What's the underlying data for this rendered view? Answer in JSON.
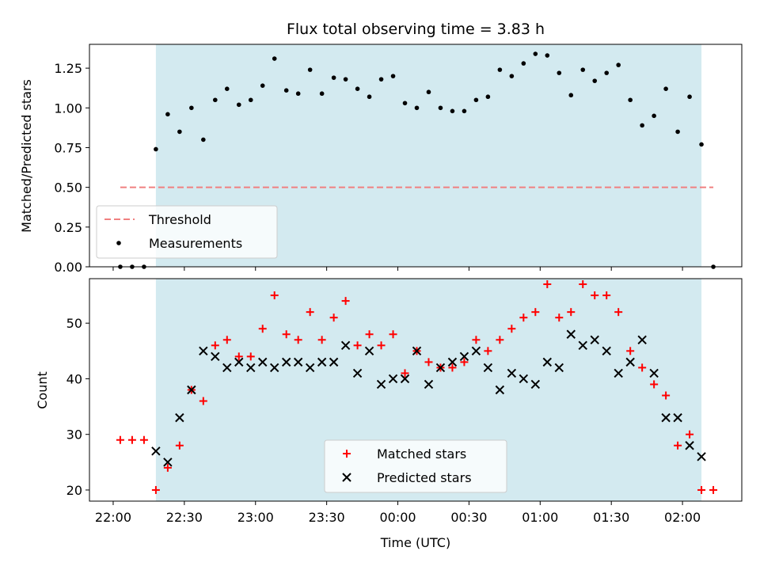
{
  "chart_data": [
    {
      "type": "scatter",
      "title": "Flux total observing time = 3.83 h",
      "ylabel": "Matched/Predicted stars",
      "xlabel": "",
      "ylim": [
        0.0,
        1.4
      ],
      "yticks": [
        "0.00",
        "0.25",
        "0.50",
        "0.75",
        "1.00",
        "1.25"
      ],
      "ytick_values": [
        0.0,
        0.25,
        0.5,
        0.75,
        1.0,
        1.25
      ],
      "observing_window": [
        "22:18",
        "02:08"
      ],
      "shade_color": "#d3eaf0",
      "legend_position": "lower-left",
      "threshold": {
        "name": "Threshold",
        "value": 0.5,
        "x_start": "22:03",
        "x_end": "02:13",
        "color": "#f08080",
        "style": "dashed"
      },
      "series": [
        {
          "name": "Measurements",
          "marker": "dot",
          "color": "#000000",
          "points": [
            [
              "22:03",
              0.0
            ],
            [
              "22:08",
              0.0
            ],
            [
              "22:13",
              0.0
            ],
            [
              "22:18",
              0.74
            ],
            [
              "22:23",
              0.96
            ],
            [
              "22:28",
              0.85
            ],
            [
              "22:33",
              1.0
            ],
            [
              "22:38",
              0.8
            ],
            [
              "22:43",
              1.05
            ],
            [
              "22:48",
              1.12
            ],
            [
              "22:53",
              1.02
            ],
            [
              "22:58",
              1.05
            ],
            [
              "23:03",
              1.14
            ],
            [
              "23:08",
              1.31
            ],
            [
              "23:13",
              1.11
            ],
            [
              "23:18",
              1.09
            ],
            [
              "23:23",
              1.24
            ],
            [
              "23:28",
              1.09
            ],
            [
              "23:33",
              1.19
            ],
            [
              "23:38",
              1.18
            ],
            [
              "23:43",
              1.12
            ],
            [
              "23:48",
              1.07
            ],
            [
              "23:53",
              1.18
            ],
            [
              "23:58",
              1.2
            ],
            [
              "00:03",
              1.03
            ],
            [
              "00:08",
              1.0
            ],
            [
              "00:13",
              1.1
            ],
            [
              "00:18",
              1.0
            ],
            [
              "00:23",
              0.98
            ],
            [
              "00:28",
              0.98
            ],
            [
              "00:33",
              1.05
            ],
            [
              "00:38",
              1.07
            ],
            [
              "00:43",
              1.24
            ],
            [
              "00:48",
              1.2
            ],
            [
              "00:53",
              1.28
            ],
            [
              "00:58",
              1.34
            ],
            [
              "01:03",
              1.33
            ],
            [
              "01:08",
              1.22
            ],
            [
              "01:13",
              1.08
            ],
            [
              "01:18",
              1.24
            ],
            [
              "01:23",
              1.17
            ],
            [
              "01:28",
              1.22
            ],
            [
              "01:33",
              1.27
            ],
            [
              "01:38",
              1.05
            ],
            [
              "01:43",
              0.89
            ],
            [
              "01:48",
              0.95
            ],
            [
              "01:53",
              1.12
            ],
            [
              "01:58",
              0.85
            ],
            [
              "02:03",
              1.07
            ],
            [
              "02:08",
              0.77
            ],
            [
              "02:13",
              0.0
            ]
          ]
        }
      ]
    },
    {
      "type": "scatter",
      "title": "",
      "xlabel": "Time (UTC)",
      "ylabel": "Count",
      "ylim": [
        18,
        58
      ],
      "yticks": [
        "20",
        "30",
        "40",
        "50"
      ],
      "ytick_values": [
        20,
        30,
        40,
        50
      ],
      "xticks": [
        "22:00",
        "22:30",
        "23:00",
        "23:30",
        "00:00",
        "00:30",
        "01:00",
        "01:30",
        "02:00"
      ],
      "xlim": [
        "21:50",
        "02:25"
      ],
      "observing_window": [
        "22:18",
        "02:08"
      ],
      "shade_color": "#d3eaf0",
      "legend_position": "lower-center",
      "series": [
        {
          "name": "Matched stars",
          "marker": "plus",
          "color": "#ff0000",
          "points": [
            [
              "22:03",
              29
            ],
            [
              "22:08",
              29
            ],
            [
              "22:13",
              29
            ],
            [
              "22:18",
              20
            ],
            [
              "22:23",
              24
            ],
            [
              "22:28",
              28
            ],
            [
              "22:33",
              38
            ],
            [
              "22:38",
              36
            ],
            [
              "22:43",
              46
            ],
            [
              "22:48",
              47
            ],
            [
              "22:53",
              44
            ],
            [
              "22:58",
              44
            ],
            [
              "23:03",
              49
            ],
            [
              "23:08",
              55
            ],
            [
              "23:13",
              48
            ],
            [
              "23:18",
              47
            ],
            [
              "23:23",
              52
            ],
            [
              "23:28",
              47
            ],
            [
              "23:33",
              51
            ],
            [
              "23:38",
              54
            ],
            [
              "23:43",
              46
            ],
            [
              "23:48",
              48
            ],
            [
              "23:53",
              46
            ],
            [
              "23:58",
              48
            ],
            [
              "00:03",
              41
            ],
            [
              "00:08",
              45
            ],
            [
              "00:13",
              43
            ],
            [
              "00:18",
              42
            ],
            [
              "00:23",
              42
            ],
            [
              "00:28",
              43
            ],
            [
              "00:33",
              47
            ],
            [
              "00:38",
              45
            ],
            [
              "00:43",
              47
            ],
            [
              "00:48",
              49
            ],
            [
              "00:53",
              51
            ],
            [
              "00:58",
              52
            ],
            [
              "01:03",
              57
            ],
            [
              "01:08",
              51
            ],
            [
              "01:13",
              52
            ],
            [
              "01:18",
              57
            ],
            [
              "01:23",
              55
            ],
            [
              "01:28",
              55
            ],
            [
              "01:33",
              52
            ],
            [
              "01:38",
              45
            ],
            [
              "01:43",
              42
            ],
            [
              "01:48",
              39
            ],
            [
              "01:53",
              37
            ],
            [
              "01:58",
              28
            ],
            [
              "02:03",
              30
            ],
            [
              "02:08",
              20
            ],
            [
              "02:13",
              20
            ]
          ]
        },
        {
          "name": "Predicted stars",
          "marker": "x",
          "color": "#000000",
          "points": [
            [
              "22:18",
              27
            ],
            [
              "22:23",
              25
            ],
            [
              "22:28",
              33
            ],
            [
              "22:33",
              38
            ],
            [
              "22:38",
              45
            ],
            [
              "22:43",
              44
            ],
            [
              "22:48",
              42
            ],
            [
              "22:53",
              43
            ],
            [
              "22:58",
              42
            ],
            [
              "23:03",
              43
            ],
            [
              "23:08",
              42
            ],
            [
              "23:13",
              43
            ],
            [
              "23:18",
              43
            ],
            [
              "23:23",
              42
            ],
            [
              "23:28",
              43
            ],
            [
              "23:33",
              43
            ],
            [
              "23:38",
              46
            ],
            [
              "23:43",
              41
            ],
            [
              "23:48",
              45
            ],
            [
              "23:53",
              39
            ],
            [
              "23:58",
              40
            ],
            [
              "00:03",
              40
            ],
            [
              "00:08",
              45
            ],
            [
              "00:13",
              39
            ],
            [
              "00:18",
              42
            ],
            [
              "00:23",
              43
            ],
            [
              "00:28",
              44
            ],
            [
              "00:33",
              45
            ],
            [
              "00:38",
              42
            ],
            [
              "00:43",
              38
            ],
            [
              "00:48",
              41
            ],
            [
              "00:53",
              40
            ],
            [
              "00:58",
              39
            ],
            [
              "01:03",
              43
            ],
            [
              "01:08",
              42
            ],
            [
              "01:13",
              48
            ],
            [
              "01:18",
              46
            ],
            [
              "01:23",
              47
            ],
            [
              "01:28",
              45
            ],
            [
              "01:33",
              41
            ],
            [
              "01:38",
              43
            ],
            [
              "01:43",
              47
            ],
            [
              "01:48",
              41
            ],
            [
              "01:53",
              33
            ],
            [
              "01:58",
              33
            ],
            [
              "02:03",
              28
            ],
            [
              "02:08",
              26
            ]
          ]
        }
      ]
    }
  ]
}
